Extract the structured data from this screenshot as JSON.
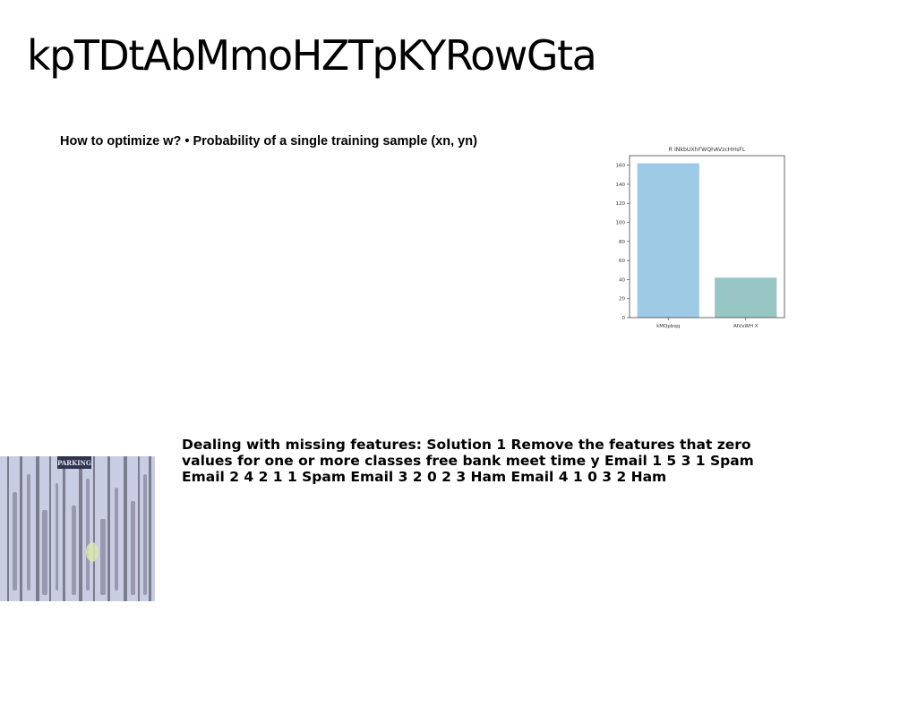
{
  "slide": {
    "title": "kpTDtAbMmoHZTpKYRowGta",
    "subhead": "How to optimize w? • Probability of a single training sample (xn, yn)",
    "body": "Dealing with missing features: Solution 1 Remove the features that zero values for one or more classes free bank meet time y Email 1 5 3 1 Spam Email 2 4 2 1 1 Spam Email 3 2 0 2 3 Ham Email 4 1 0 3 2 Ham"
  },
  "photo": {
    "sign_text": "PARKING",
    "colors": {
      "wood": "#c9cde3",
      "stain": "#3c3a4a",
      "sign": "#2f3450",
      "spot": "#d8e6b0"
    }
  },
  "chart_data": {
    "type": "bar",
    "title": "R INkbUXhFWQhAVzcHHsFL",
    "categories": [
      "kMQpbqq",
      "AIVxWH X"
    ],
    "values": [
      162,
      42
    ],
    "colors": [
      "#9ecae6",
      "#97c6c4"
    ],
    "ylim": [
      0,
      170
    ],
    "yticks": [
      0,
      20,
      40,
      60,
      80,
      100,
      120,
      140,
      160
    ],
    "xlabel": "",
    "ylabel": "",
    "grid": false
  }
}
